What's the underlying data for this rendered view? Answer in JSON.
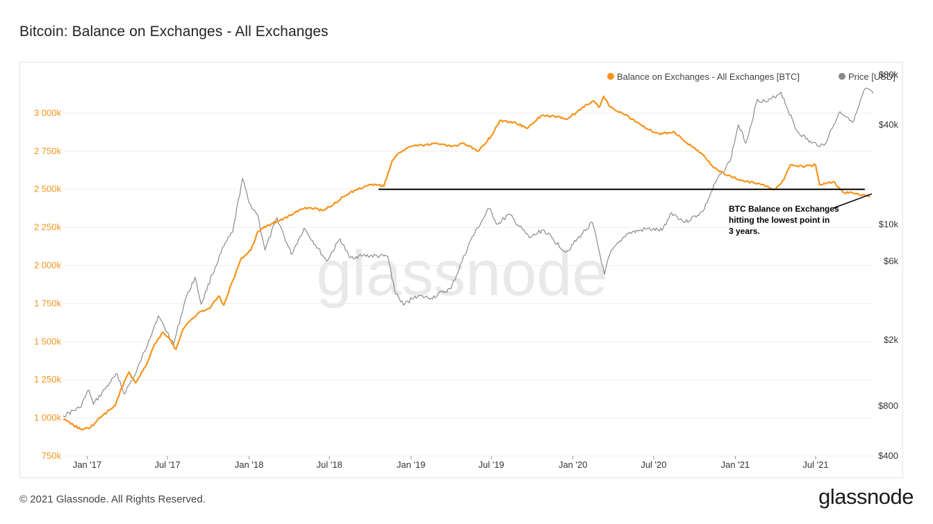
{
  "page": {
    "title": "Bitcoin: Balance on Exchanges - All Exchanges",
    "copyright": "© 2021 Glassnode. All Rights Reserved.",
    "brand": "glassnode",
    "watermark": "glassnode"
  },
  "chart_data": {
    "type": "line",
    "title": "Bitcoin: Balance on Exchanges - All Exchanges",
    "x_tick_labels": [
      "Jan '17",
      "Jul '17",
      "Jan '18",
      "Jul '18",
      "Jan '19",
      "Jul '19",
      "Jan '20",
      "Jul '20",
      "Jan '21",
      "Jul '21"
    ],
    "x_range": [
      "2016-11-08",
      "2021-11-08"
    ],
    "y_left": {
      "ticks": [
        750000,
        1000000,
        1250000,
        1500000,
        1750000,
        2000000,
        2250000,
        2500000,
        2750000,
        3000000
      ],
      "tick_labels": [
        "750k",
        "1 000k",
        "1 250k",
        "1 500k",
        "1 750k",
        "2 000k",
        "2 250k",
        "2 500k",
        "2 750k",
        "3 000k"
      ],
      "range": [
        750000,
        3250000
      ],
      "color": "#f7931a"
    },
    "y_right": {
      "scale": "log",
      "ticks": [
        400,
        800,
        2000,
        6000,
        10000,
        40000,
        80000
      ],
      "tick_labels": [
        "$400",
        "$800",
        "$2k",
        "$6k",
        "$10k",
        "$40k",
        "$80k"
      ],
      "range": [
        400,
        80000
      ],
      "color": "#333333"
    },
    "grid": true,
    "legend_position": "top-right",
    "series": [
      {
        "name": "Balance on Exchanges - All Exchanges [BTC]",
        "axis": "left",
        "color": "#f7931a",
        "points": [
          [
            "2016-11-08",
            990000
          ],
          [
            "2016-11-25",
            960000
          ],
          [
            "2016-12-20",
            925000
          ],
          [
            "2017-01-08",
            935000
          ],
          [
            "2017-01-25",
            990000
          ],
          [
            "2017-02-15",
            1040000
          ],
          [
            "2017-03-05",
            1080000
          ],
          [
            "2017-03-20",
            1200000
          ],
          [
            "2017-04-05",
            1300000
          ],
          [
            "2017-04-20",
            1230000
          ],
          [
            "2017-05-15",
            1350000
          ],
          [
            "2017-06-01",
            1480000
          ],
          [
            "2017-06-20",
            1560000
          ],
          [
            "2017-07-05",
            1520000
          ],
          [
            "2017-07-20",
            1450000
          ],
          [
            "2017-08-05",
            1580000
          ],
          [
            "2017-08-25",
            1650000
          ],
          [
            "2017-09-15",
            1700000
          ],
          [
            "2017-10-05",
            1720000
          ],
          [
            "2017-10-25",
            1800000
          ],
          [
            "2017-11-05",
            1740000
          ],
          [
            "2017-11-25",
            1900000
          ],
          [
            "2017-12-15",
            2050000
          ],
          [
            "2018-01-05",
            2100000
          ],
          [
            "2018-01-20",
            2220000
          ],
          [
            "2018-02-10",
            2260000
          ],
          [
            "2018-03-05",
            2290000
          ],
          [
            "2018-04-05",
            2330000
          ],
          [
            "2018-05-01",
            2370000
          ],
          [
            "2018-05-20",
            2380000
          ],
          [
            "2018-06-15",
            2360000
          ],
          [
            "2018-07-10",
            2400000
          ],
          [
            "2018-08-01",
            2450000
          ],
          [
            "2018-09-01",
            2500000
          ],
          [
            "2018-10-01",
            2530000
          ],
          [
            "2018-11-01",
            2520000
          ],
          [
            "2018-11-20",
            2690000
          ],
          [
            "2018-12-05",
            2740000
          ],
          [
            "2019-01-01",
            2780000
          ],
          [
            "2019-02-01",
            2790000
          ],
          [
            "2019-03-01",
            2800000
          ],
          [
            "2019-04-01",
            2780000
          ],
          [
            "2019-05-01",
            2800000
          ],
          [
            "2019-06-01",
            2750000
          ],
          [
            "2019-07-01",
            2850000
          ],
          [
            "2019-07-20",
            2950000
          ],
          [
            "2019-08-20",
            2940000
          ],
          [
            "2019-09-20",
            2900000
          ],
          [
            "2019-10-20",
            2980000
          ],
          [
            "2019-11-20",
            2980000
          ],
          [
            "2019-12-20",
            2960000
          ],
          [
            "2020-01-20",
            3030000
          ],
          [
            "2020-02-15",
            3080000
          ],
          [
            "2020-03-01",
            3040000
          ],
          [
            "2020-03-10",
            3110000
          ],
          [
            "2020-03-25",
            3040000
          ],
          [
            "2020-04-20",
            3000000
          ],
          [
            "2020-05-15",
            2960000
          ],
          [
            "2020-06-15",
            2900000
          ],
          [
            "2020-07-15",
            2860000
          ],
          [
            "2020-08-15",
            2880000
          ],
          [
            "2020-09-15",
            2800000
          ],
          [
            "2020-10-15",
            2740000
          ],
          [
            "2020-11-15",
            2640000
          ],
          [
            "2020-12-15",
            2590000
          ],
          [
            "2021-01-15",
            2560000
          ],
          [
            "2021-02-15",
            2540000
          ],
          [
            "2021-03-15",
            2520000
          ],
          [
            "2021-04-01",
            2500000
          ],
          [
            "2021-04-20",
            2560000
          ],
          [
            "2021-05-05",
            2660000
          ],
          [
            "2021-06-01",
            2650000
          ],
          [
            "2021-07-01",
            2660000
          ],
          [
            "2021-07-10",
            2530000
          ],
          [
            "2021-08-10",
            2550000
          ],
          [
            "2021-09-01",
            2480000
          ],
          [
            "2021-10-01",
            2470000
          ],
          [
            "2021-11-01",
            2450000
          ]
        ]
      },
      {
        "name": "Price [USD]",
        "axis": "right",
        "color": "#8a8a8a",
        "points": [
          [
            "2016-11-08",
            700
          ],
          [
            "2016-12-15",
            780
          ],
          [
            "2017-01-05",
            1000
          ],
          [
            "2017-01-15",
            820
          ],
          [
            "2017-02-20",
            1100
          ],
          [
            "2017-03-10",
            1250
          ],
          [
            "2017-03-25",
            950
          ],
          [
            "2017-04-20",
            1250
          ],
          [
            "2017-05-20",
            2000
          ],
          [
            "2017-06-10",
            2800
          ],
          [
            "2017-07-15",
            1900
          ],
          [
            "2017-08-10",
            3500
          ],
          [
            "2017-09-01",
            4800
          ],
          [
            "2017-09-15",
            3300
          ],
          [
            "2017-10-10",
            5000
          ],
          [
            "2017-11-05",
            7400
          ],
          [
            "2017-11-25",
            9000
          ],
          [
            "2017-12-17",
            19000
          ],
          [
            "2018-01-01",
            13500
          ],
          [
            "2018-01-20",
            11500
          ],
          [
            "2018-02-06",
            7000
          ],
          [
            "2018-03-05",
            11000
          ],
          [
            "2018-04-06",
            6600
          ],
          [
            "2018-05-05",
            9500
          ],
          [
            "2018-06-25",
            6000
          ],
          [
            "2018-07-25",
            8200
          ],
          [
            "2018-08-15",
            6300
          ],
          [
            "2018-09-15",
            6500
          ],
          [
            "2018-11-10",
            6400
          ],
          [
            "2018-11-25",
            4000
          ],
          [
            "2018-12-15",
            3250
          ],
          [
            "2019-01-10",
            3700
          ],
          [
            "2019-02-15",
            3600
          ],
          [
            "2019-04-01",
            4100
          ],
          [
            "2019-05-15",
            8000
          ],
          [
            "2019-06-26",
            12500
          ],
          [
            "2019-07-15",
            10000
          ],
          [
            "2019-08-10",
            11500
          ],
          [
            "2019-09-25",
            8300
          ],
          [
            "2019-10-26",
            9300
          ],
          [
            "2019-12-17",
            6800
          ],
          [
            "2020-01-20",
            8700
          ],
          [
            "2020-02-14",
            10300
          ],
          [
            "2020-03-12",
            5000
          ],
          [
            "2020-03-25",
            6700
          ],
          [
            "2020-05-01",
            8800
          ],
          [
            "2020-06-15",
            9400
          ],
          [
            "2020-07-20",
            9200
          ],
          [
            "2020-08-10",
            11800
          ],
          [
            "2020-09-10",
            10300
          ],
          [
            "2020-10-20",
            12000
          ],
          [
            "2020-11-20",
            18500
          ],
          [
            "2020-12-20",
            24000
          ],
          [
            "2021-01-08",
            40000
          ],
          [
            "2021-01-25",
            31000
          ],
          [
            "2021-02-20",
            57000
          ],
          [
            "2021-03-15",
            55000
          ],
          [
            "2021-04-14",
            63000
          ],
          [
            "2021-05-19",
            37000
          ],
          [
            "2021-06-22",
            31000
          ],
          [
            "2021-07-20",
            30000
          ],
          [
            "2021-08-25",
            48000
          ],
          [
            "2021-09-25",
            42000
          ],
          [
            "2021-10-20",
            66000
          ],
          [
            "2021-11-08",
            62000
          ]
        ]
      }
    ],
    "reference_line": {
      "from": "2018-10-20",
      "to": "2021-10-20",
      "value": 2500000
    },
    "annotation": {
      "lines": [
        "BTC Balance on Exchanges",
        "hitting the lowest point in",
        "3 years."
      ],
      "points_to": [
        "2021-11-08",
        2470000
      ]
    }
  }
}
